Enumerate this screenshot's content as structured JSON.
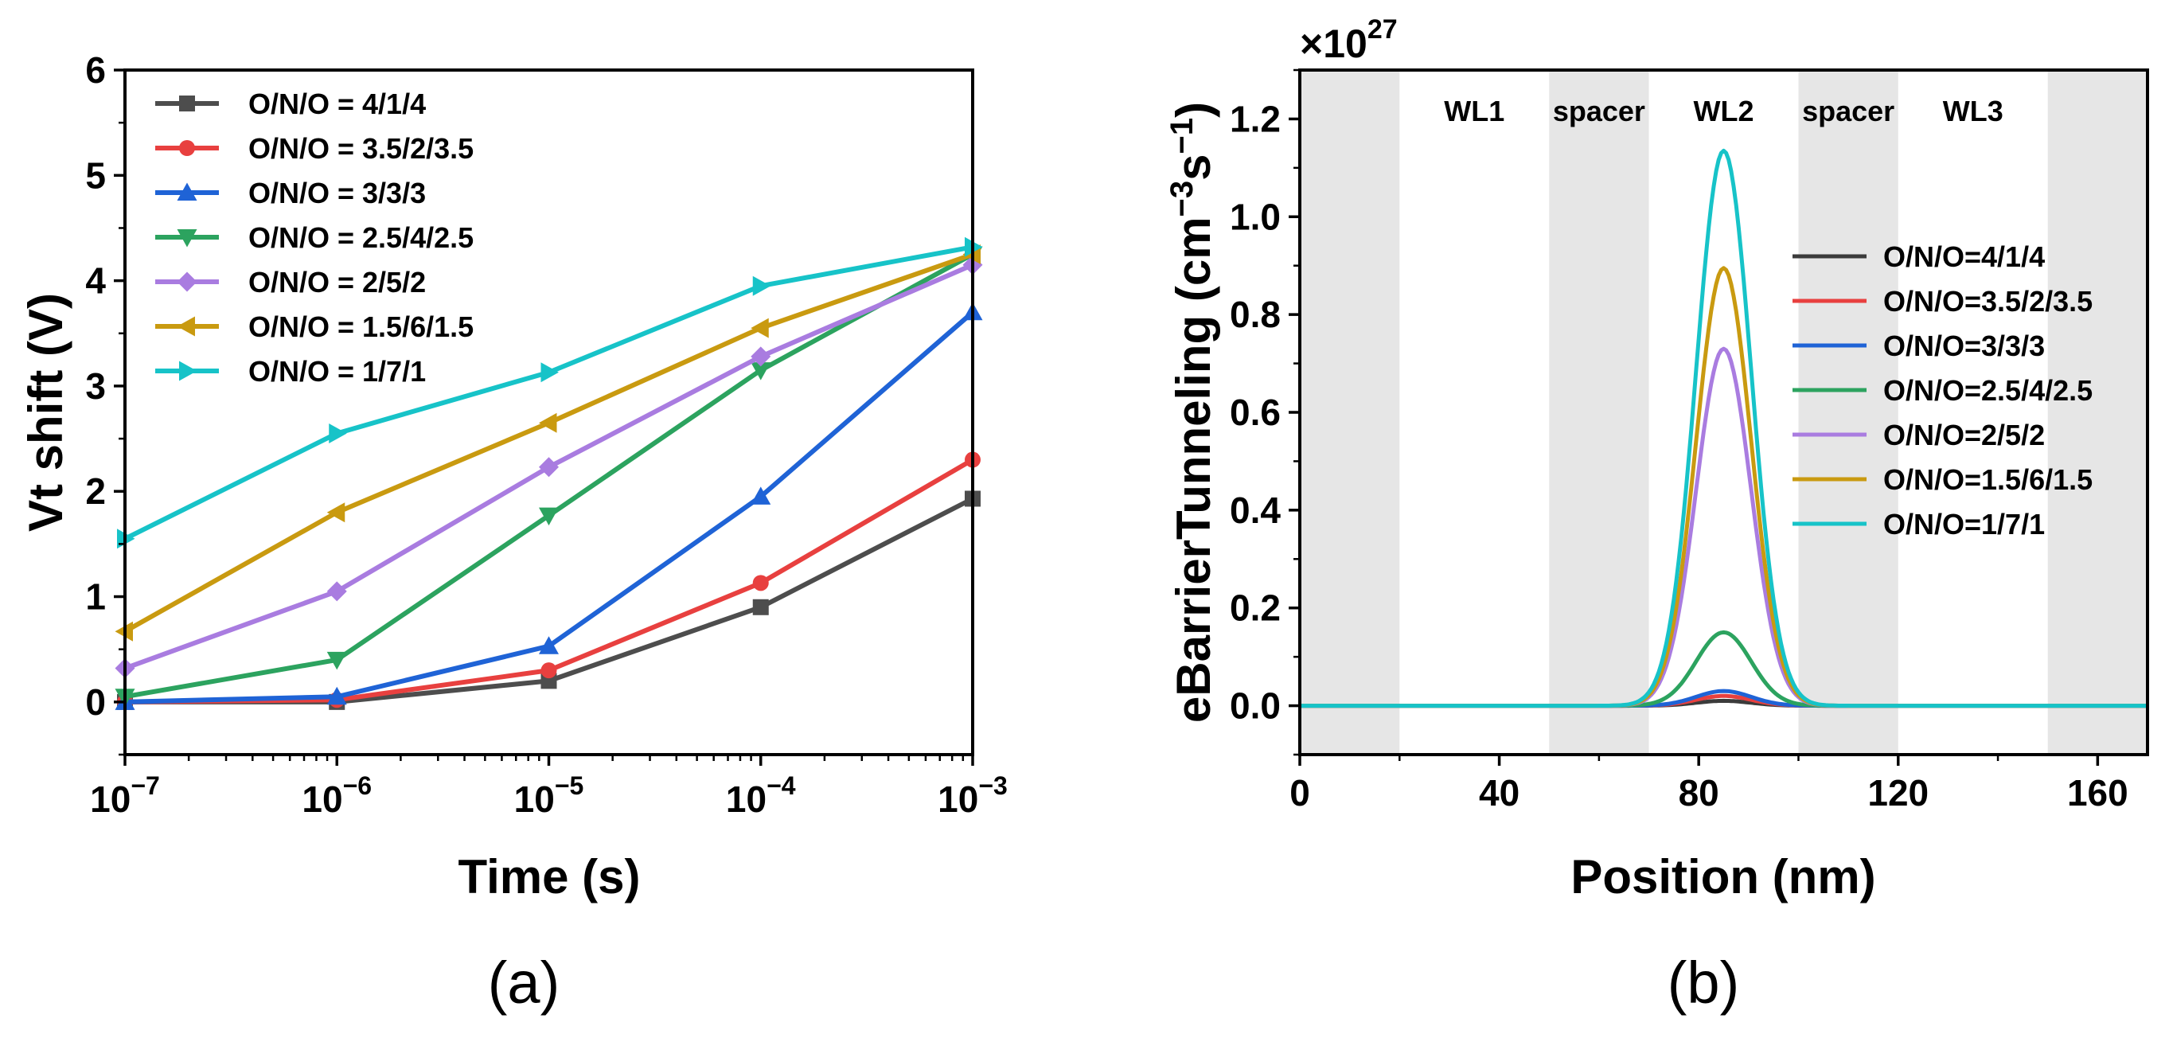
{
  "chart_data": [
    {
      "type": "line",
      "panel": "a",
      "caption": "(a)",
      "xlabel": "Time (s)",
      "ylabel": "Vt shift (V)",
      "xscale": "log",
      "xlim_exp": [
        -7,
        -3
      ],
      "ylim": [
        -0.5,
        6
      ],
      "yticks": [
        "0",
        "1",
        "2",
        "3",
        "4",
        "5",
        "6"
      ],
      "xticks": [
        {
          "base": "10",
          "exp": "−7"
        },
        {
          "base": "10",
          "exp": "−6"
        },
        {
          "base": "10",
          "exp": "−5"
        },
        {
          "base": "10",
          "exp": "−4"
        },
        {
          "base": "10",
          "exp": "−3"
        }
      ],
      "x_exponents": [
        -7,
        -6,
        -5,
        -4,
        -3
      ],
      "legend_position": "top-left",
      "series": [
        {
          "name": "O/N/O = 4/1/4",
          "color": "#4d4d4d",
          "marker": "square",
          "values": [
            0.0,
            0.0,
            0.2,
            0.9,
            1.93
          ]
        },
        {
          "name": "O/N/O = 3.5/2/3.5",
          "color": "#e8403f",
          "marker": "circle",
          "values": [
            0.0,
            0.02,
            0.3,
            1.13,
            2.3
          ]
        },
        {
          "name": "O/N/O = 3/3/3",
          "color": "#1f63d6",
          "marker": "triangle-up",
          "values": [
            0.0,
            0.05,
            0.53,
            1.95,
            3.7
          ]
        },
        {
          "name": "O/N/O = 2.5/4/2.5",
          "color": "#2ca35f",
          "marker": "triangle-down",
          "values": [
            0.05,
            0.4,
            1.77,
            3.15,
            4.25
          ]
        },
        {
          "name": "O/N/O = 2/5/2",
          "color": "#a97ce0",
          "marker": "diamond",
          "values": [
            0.32,
            1.05,
            2.23,
            3.28,
            4.15
          ]
        },
        {
          "name": "O/N/O = 1.5/6/1.5",
          "color": "#c99a10",
          "marker": "triangle-left",
          "values": [
            0.67,
            1.8,
            2.65,
            3.55,
            4.25
          ]
        },
        {
          "name": "O/N/O = 1/7/1",
          "color": "#17c3c8",
          "marker": "triangle-right",
          "values": [
            1.55,
            2.55,
            3.13,
            3.95,
            4.32
          ]
        }
      ]
    },
    {
      "type": "line",
      "panel": "b",
      "caption": "(b)",
      "xlabel": "Position (nm)",
      "ylabel_main": "eBarrierTunneling (cm",
      "ylabel_sup1": "−3",
      "ylabel_mid": "s",
      "ylabel_sup2": "−1",
      "ylabel_end": ")",
      "scale_base": "×10",
      "scale_exp": "27",
      "xlim": [
        0,
        170
      ],
      "ylim": [
        -0.1,
        1.3
      ],
      "xticks": [
        "0",
        "40",
        "80",
        "120",
        "160"
      ],
      "yticks": [
        "0.0",
        "0.2",
        "0.4",
        "0.6",
        "0.8",
        "1.0",
        "1.2"
      ],
      "shaded_regions": [
        [
          0,
          20
        ],
        [
          50,
          70
        ],
        [
          100,
          120
        ],
        [
          150,
          170
        ]
      ],
      "region_labels": [
        "WL1",
        "spacer",
        "WL2",
        "spacer",
        "WL3"
      ],
      "region_label_positions": [
        35,
        60,
        85,
        110,
        135
      ],
      "peak_center": 85,
      "peak_sigma": 5.5,
      "legend_position": "right",
      "series": [
        {
          "name": "O/N/O=4/1/4",
          "color": "#3b3b3b",
          "peak": 0.01
        },
        {
          "name": "O/N/O=3.5/2/3.5",
          "color": "#e8403f",
          "peak": 0.02
        },
        {
          "name": "O/N/O=3/3/3",
          "color": "#1f63d6",
          "peak": 0.03
        },
        {
          "name": "O/N/O=2.5/4/2.5",
          "color": "#2ca35f",
          "peak": 0.15
        },
        {
          "name": "O/N/O=2/5/2",
          "color": "#a97ce0",
          "peak": 0.73
        },
        {
          "name": "O/N/O=1.5/6/1.5",
          "color": "#c99a10",
          "peak": 0.895
        },
        {
          "name": "O/N/O=1/7/1",
          "color": "#17c3c8",
          "peak": 1.135
        }
      ]
    }
  ]
}
